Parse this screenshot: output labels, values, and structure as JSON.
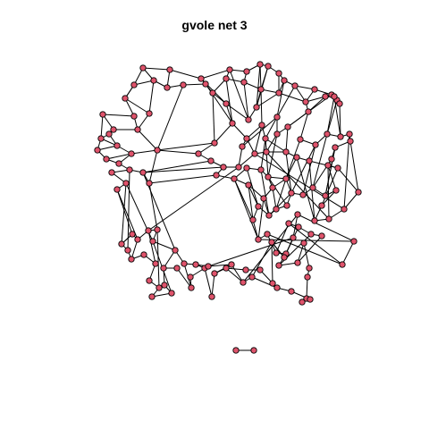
{
  "plot": {
    "title": "gvole net 3",
    "node_fill": "#df536b",
    "node_stroke": "#000000",
    "edge_color": "#000000"
  }
}
